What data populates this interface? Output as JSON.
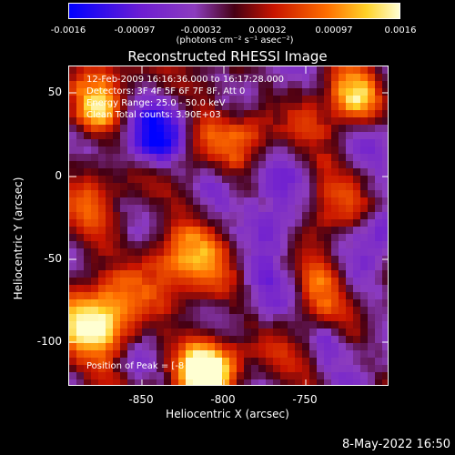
{
  "colorbar": {
    "ticks": [
      "-0.0016",
      "-0.00097",
      "-0.00032",
      "0.00032",
      "0.00097",
      "0.0016"
    ],
    "units": "(photons cm⁻² s⁻¹ asec⁻²)"
  },
  "title": "Reconstructed RHESSI Image",
  "info": {
    "line1": "12-Feb-2009 16:16:36.000 to 16:17:28.000",
    "line2": "Detectors: 3F 4F 5F 6F 7F 8F, Att 0",
    "line3": "Energy Range: 25.0 - 50.0 keV",
    "line4": "Clean     Total counts: 3.90E+03"
  },
  "peak": "Position of Peak = [-8",
  "axes": {
    "xlabel": "Heliocentric X (arcsec)",
    "ylabel": "Heliocentric Y (arcsec)",
    "xticks": [
      "-850",
      "-800",
      "-750"
    ],
    "yticks": [
      "50",
      "0",
      "-50",
      "-100"
    ]
  },
  "timestamp": "8-May-2022 16:50",
  "colors": {
    "low": "#0000ff",
    "mid_low": "#8030c0",
    "mid": "#500010",
    "high": "#ff6000",
    "peak": "#ffffc0"
  }
}
